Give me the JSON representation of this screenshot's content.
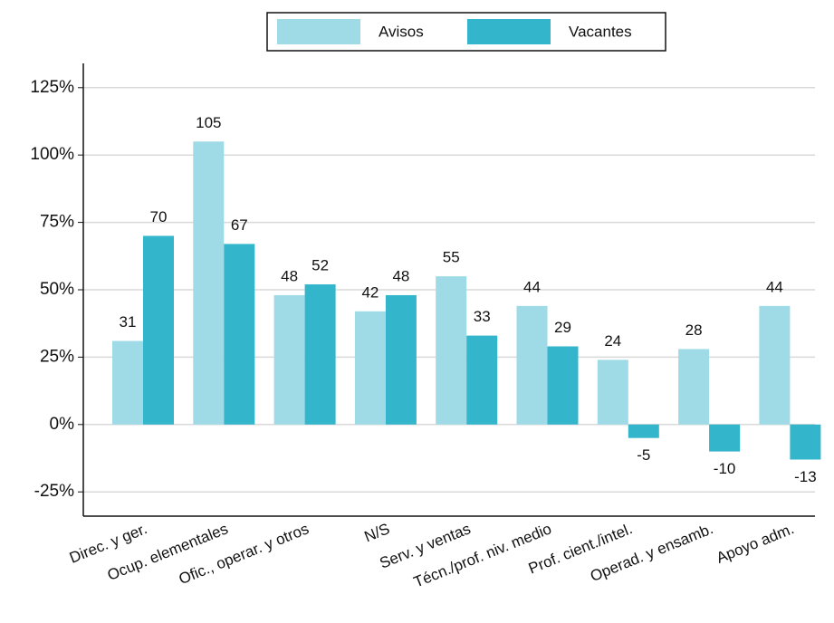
{
  "chart_data": {
    "type": "bar",
    "categories": [
      "Direc. y ger.",
      "Ocup. elementales",
      "Ofic., operar. y otros",
      "N/S",
      "Serv. y ventas",
      "Técn./prof. niv. medio",
      "Prof. cient./intel.",
      "Operad. y ensamb.",
      "Apoyo adm."
    ],
    "series": [
      {
        "name": "Avisos",
        "color": "#9edbe6",
        "values": [
          31,
          105,
          48,
          42,
          55,
          44,
          24,
          28,
          44
        ]
      },
      {
        "name": "Vacantes",
        "color": "#33b5cc",
        "values": [
          70,
          67,
          52,
          48,
          33,
          29,
          -5,
          -10,
          -13
        ]
      }
    ],
    "ylim": [
      -34,
      134
    ],
    "yticks": [
      {
        "value": -25,
        "label": "-25%"
      },
      {
        "value": 0,
        "label": "0%"
      },
      {
        "value": 25,
        "label": "25%"
      },
      {
        "value": 50,
        "label": "50%"
      },
      {
        "value": 75,
        "label": "75%"
      },
      {
        "value": 100,
        "label": "100%"
      },
      {
        "value": 125,
        "label": "125%"
      }
    ],
    "grid": true,
    "legend": "top"
  }
}
